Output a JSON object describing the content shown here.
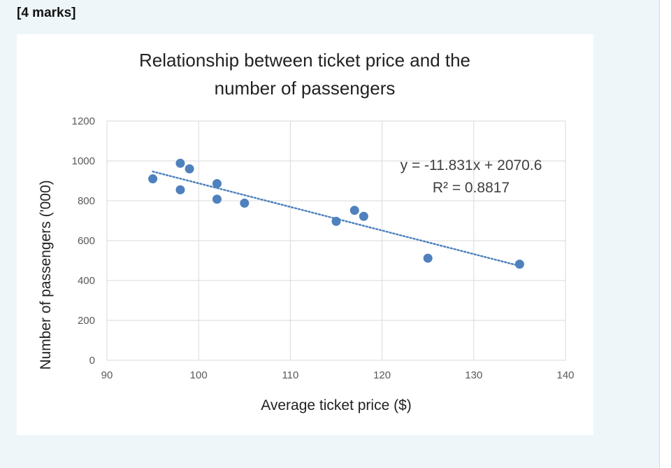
{
  "page": {
    "marks_label": "[4 marks]"
  },
  "colors": {
    "panel_bg": "#eef6fa",
    "card_bg": "#ffffff",
    "point": "#4e81bd",
    "trendline": "#4e81bd",
    "grid": "#d9d9d9"
  },
  "chart_data": {
    "type": "scatter",
    "title": [
      "Relationship between ticket price and the",
      "number of passengers"
    ],
    "xlabel": "Average ticket price ($)",
    "ylabel": "Number of passengers ('000)",
    "xlim": [
      90,
      140
    ],
    "ylim": [
      0,
      1200
    ],
    "xticks": [
      90,
      100,
      110,
      120,
      130,
      140
    ],
    "yticks": [
      0,
      200,
      400,
      600,
      800,
      1000,
      1200
    ],
    "grid": true,
    "series": [
      {
        "name": "Passengers",
        "points": [
          {
            "x": 95,
            "y": 910
          },
          {
            "x": 98,
            "y": 988
          },
          {
            "x": 98,
            "y": 855
          },
          {
            "x": 99,
            "y": 960
          },
          {
            "x": 102,
            "y": 886
          },
          {
            "x": 102,
            "y": 808
          },
          {
            "x": 105,
            "y": 788
          },
          {
            "x": 115,
            "y": 697
          },
          {
            "x": 117,
            "y": 752
          },
          {
            "x": 118,
            "y": 722
          },
          {
            "x": 125,
            "y": 512
          },
          {
            "x": 135,
            "y": 482
          }
        ]
      }
    ],
    "trendline": {
      "type": "linear",
      "slope": -11.831,
      "intercept": 2070.6,
      "x_range": [
        95,
        135
      ],
      "equation_label": "y = -11.831x + 2070.6",
      "r2_label": "R² = 0.8817"
    }
  }
}
